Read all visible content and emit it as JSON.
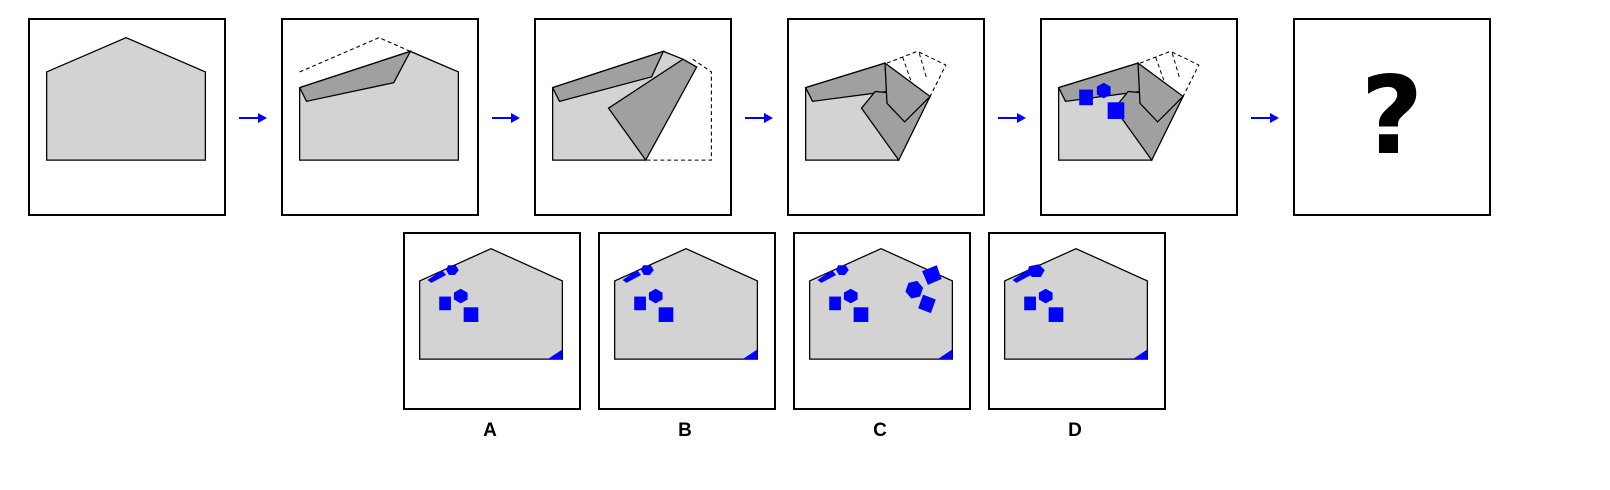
{
  "sequence": {
    "steps": [
      {
        "id": 1,
        "content": "unfolded-paper"
      },
      {
        "id": 2,
        "content": "fold-top-left"
      },
      {
        "id": 3,
        "content": "fold-right"
      },
      {
        "id": 4,
        "content": "fold-right-corner"
      },
      {
        "id": 5,
        "content": "punched-shapes"
      },
      {
        "id": 6,
        "content": "question"
      }
    ],
    "question_mark": "?"
  },
  "options": [
    {
      "label": "A"
    },
    {
      "label": "B"
    },
    {
      "label": "C"
    },
    {
      "label": "D"
    }
  ],
  "colors": {
    "paper": "#d3d3d3",
    "fold": "#a0a0a0",
    "punch": "#0000ff",
    "arrow": "#0000ff",
    "outline": "#000000"
  },
  "icons": {
    "arrow": "right-arrow-icon",
    "punch_shapes": [
      "square",
      "hexagon",
      "triangle"
    ]
  }
}
